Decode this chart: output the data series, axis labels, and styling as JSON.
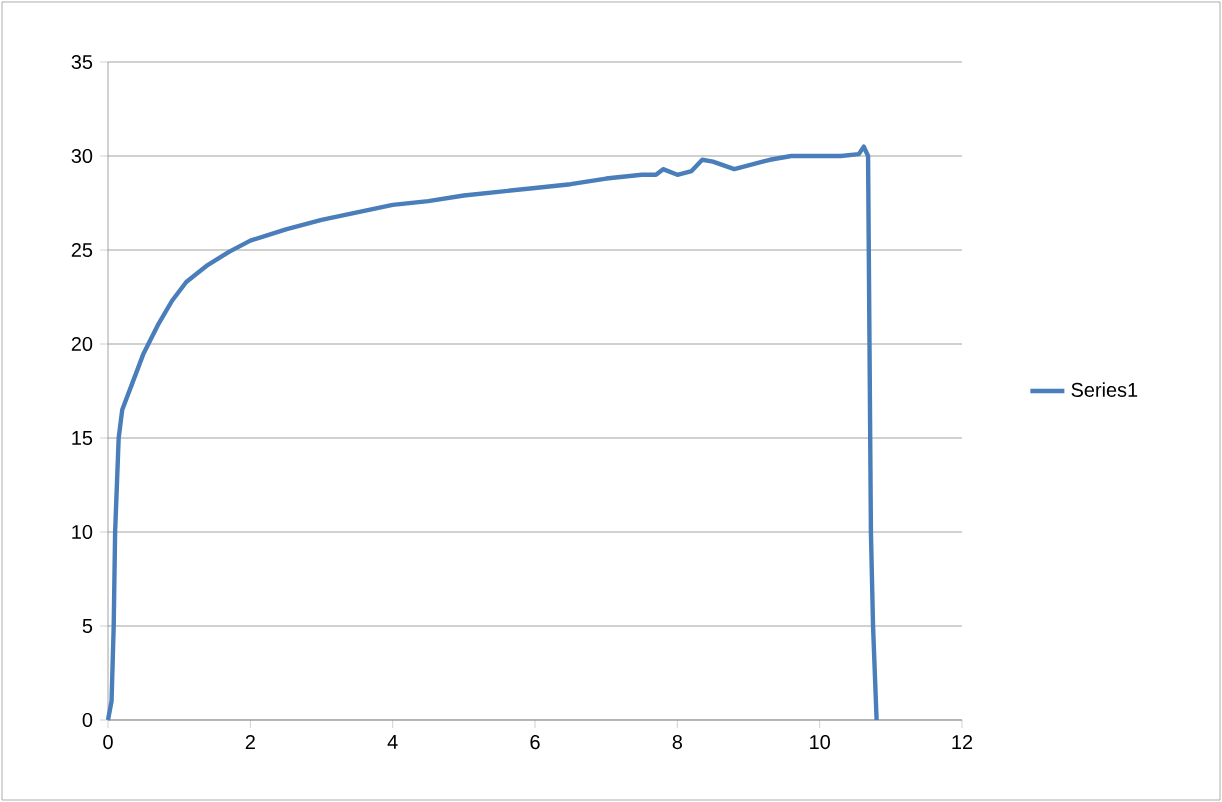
{
  "chart_data": {
    "type": "line",
    "xlim": [
      0,
      12
    ],
    "ylim": [
      0,
      35
    ],
    "xticks": [
      0,
      2,
      4,
      6,
      8,
      10,
      12
    ],
    "yticks": [
      0,
      5,
      10,
      15,
      20,
      25,
      30,
      35
    ],
    "grid": "y",
    "legend": "right",
    "marker": "none",
    "line_style": "solid",
    "series": [
      {
        "name": "Series1",
        "color": "#4a7ebb",
        "x": [
          0,
          0.05,
          0.08,
          0.1,
          0.15,
          0.2,
          0.35,
          0.5,
          0.7,
          0.9,
          1.1,
          1.4,
          1.7,
          2.0,
          2.5,
          3.0,
          3.5,
          4.0,
          4.5,
          5.0,
          5.5,
          6.0,
          6.5,
          7.0,
          7.5,
          7.7,
          7.8,
          8.0,
          8.2,
          8.35,
          8.5,
          8.8,
          9.0,
          9.3,
          9.6,
          10.0,
          10.3,
          10.55,
          10.62,
          10.68,
          10.72,
          10.75,
          10.8
        ],
        "values": [
          0,
          1,
          5,
          10,
          15,
          16.5,
          18,
          19.5,
          21,
          22.3,
          23.3,
          24.2,
          24.9,
          25.5,
          26.1,
          26.6,
          27.0,
          27.4,
          27.6,
          27.9,
          28.1,
          28.3,
          28.5,
          28.8,
          29.0,
          29.0,
          29.3,
          29.0,
          29.2,
          29.8,
          29.7,
          29.3,
          29.5,
          29.8,
          30.0,
          30.0,
          30.0,
          30.1,
          30.5,
          30.0,
          10,
          5,
          0
        ]
      }
    ]
  }
}
